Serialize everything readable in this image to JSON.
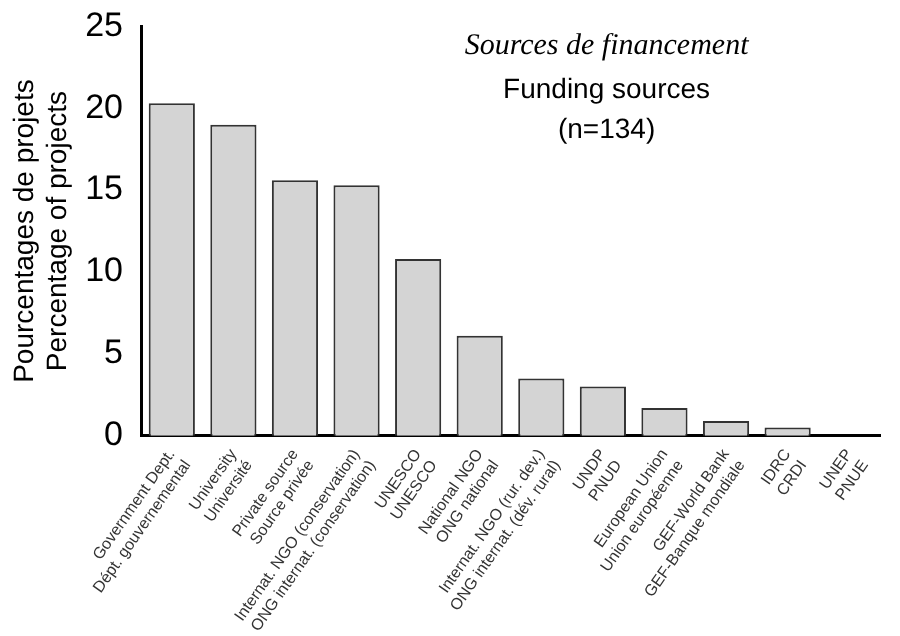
{
  "chart_data": {
    "type": "bar",
    "title": "Sources de financement",
    "subtitle": "Funding sources",
    "annotations": [
      "(n=134)"
    ],
    "ylabel": "Pourcentages de projets\nPercentage of projects",
    "categories": [
      "Government Dept.\nDépt. gouvernemental",
      "University\nUniversité",
      "Private source\nSource privée",
      "Internat. NGO (conservation)\nONG internat. (conservation)",
      "UNESCO\nUNESCO",
      "National NGO\nONG national",
      "Internat. NGO (rur. dev.)\nONG internat. (dév. rural)",
      "UNDP\nPNUD",
      "European Union\nUnion européenne",
      "GEF-World Bank\nGEF-Banque mondiale",
      "IDRC\nCRDI",
      "UNEP\nPNUE"
    ],
    "values": [
      20.3,
      19.0,
      15.6,
      15.3,
      10.8,
      6.1,
      3.5,
      3.0,
      1.7,
      0.9,
      0.5,
      0
    ],
    "color": "#d4d4d4",
    "ylim": [
      0,
      25
    ],
    "yticks": [
      0,
      5,
      10,
      15,
      20,
      25
    ],
    "grid": false,
    "legend": false
  }
}
